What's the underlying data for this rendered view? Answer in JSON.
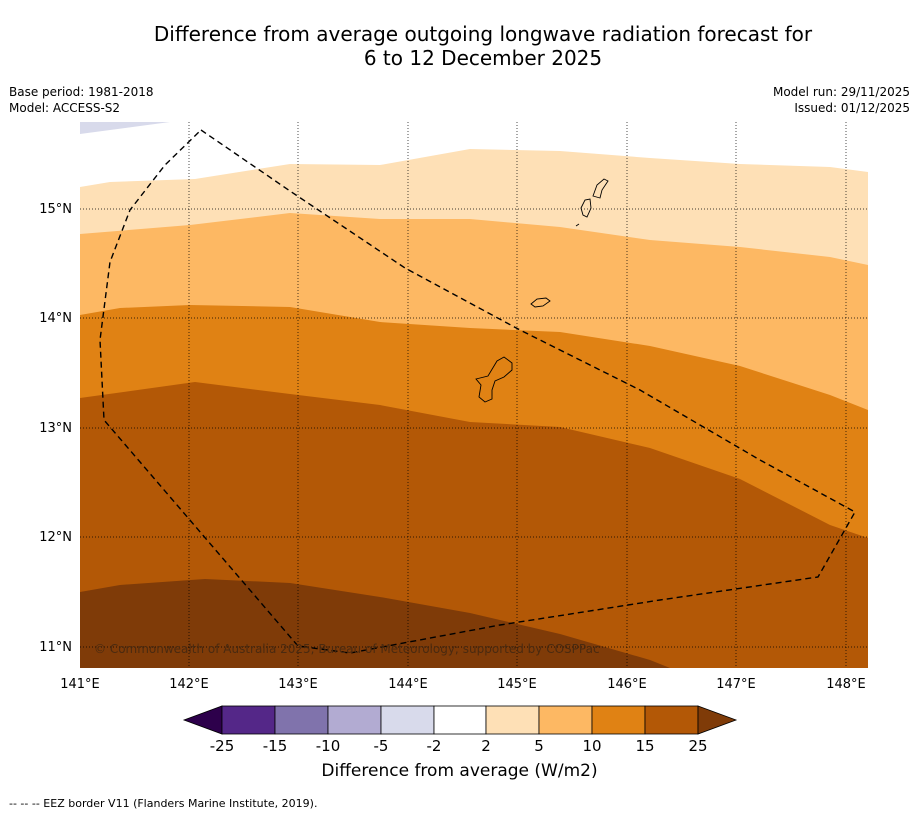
{
  "title": {
    "line1": "Difference from average outgoing longwave radiation forecast for",
    "line2": "6 to 12 December 2025"
  },
  "meta": {
    "base_period": "Base period: 1981-2018",
    "model": "Model: ACCESS-S2",
    "model_run": "Model run: 29/11/2025",
    "issued": "Issued: 01/12/2025"
  },
  "map": {
    "lon_labels": [
      "141°E",
      "142°E",
      "143°E",
      "144°E",
      "145°E",
      "146°E",
      "147°E",
      "148°E"
    ],
    "lat_labels": [
      "15°N",
      "14°N",
      "13°N",
      "12°N",
      "11°N"
    ],
    "copyright": "© Commonwealth of Australia 2025, Bureau of Meteorology; supported by COSPPac",
    "categories": [
      {
        "range": "5 to 10",
        "color": "#fdb863"
      },
      {
        "range": "10 to 15",
        "color": "#e08214"
      },
      {
        "range": "15 to 25",
        "color": "#b35806"
      },
      {
        "range": "> 25",
        "color": "#7f3b08"
      }
    ]
  },
  "colorbar": {
    "ticks": [
      "-25",
      "-15",
      "-10",
      "-5",
      "-2",
      "2",
      "5",
      "10",
      "15",
      "25"
    ],
    "colors": [
      "#2d004b",
      "#542788",
      "#8073ac",
      "#b2abd2",
      "#d8daeb",
      "#ffffff",
      "#fee0b6",
      "#fdb863",
      "#e08214",
      "#b35806",
      "#7f3b08"
    ],
    "title": "Difference from average (W/m2)"
  },
  "footer": "-- -- -- EEZ border V11 (Flanders Marine Institute, 2019)."
}
